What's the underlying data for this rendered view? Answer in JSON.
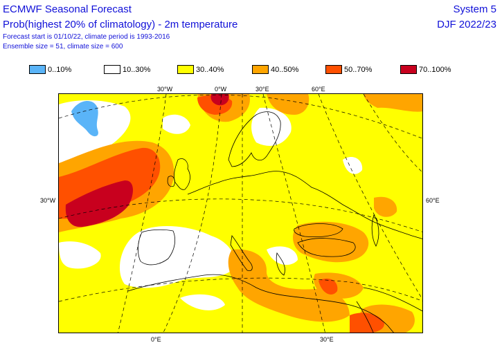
{
  "header": {
    "line1": "ECMWF Seasonal Forecast",
    "line2": "Prob(highest 20% of climatology) - 2m temperature",
    "line3": "Forecast start is 01/10/22, climate period is 1993-2016",
    "line4": "Ensemble size = 51, climate size = 600",
    "system": "System 5",
    "season": "DJF 2022/23"
  },
  "legend": [
    {
      "label": "0..10%",
      "color": "#5ab4f8"
    },
    {
      "label": "10..30%",
      "color": "#ffffff"
    },
    {
      "label": "30..40%",
      "color": "#ffff00"
    },
    {
      "label": "40..50%",
      "color": "#ffa500"
    },
    {
      "label": "50..70%",
      "color": "#ff5000"
    },
    {
      "label": "70..100%",
      "color": "#c8001e"
    }
  ],
  "axis_labels": {
    "top": [
      "30°W",
      "0°W",
      "30°E",
      "60°E"
    ],
    "bottom": [
      "0°E",
      "30°E"
    ],
    "left": "30°W",
    "right": "60°E"
  }
}
